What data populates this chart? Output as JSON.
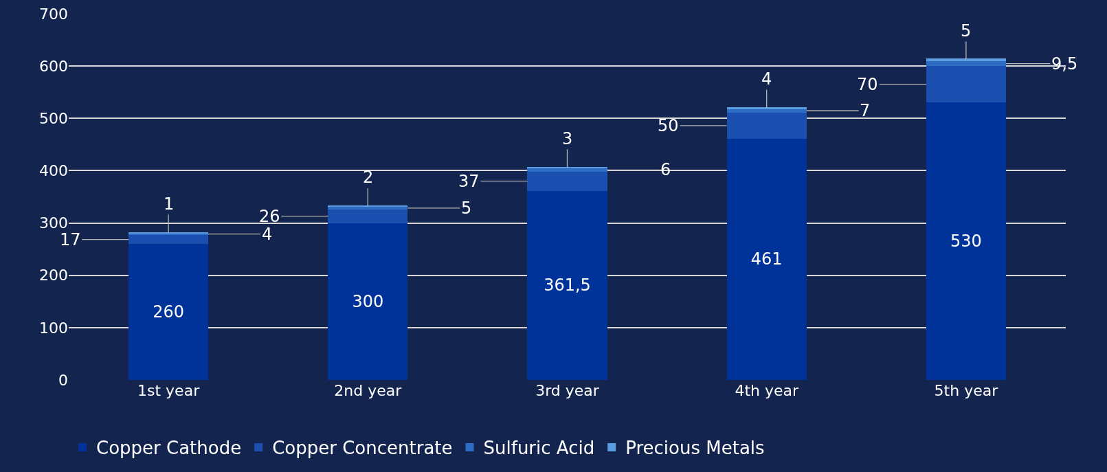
{
  "chart_data": {
    "type": "bar",
    "stacked": true,
    "categories": [
      "1st year",
      "2nd year",
      "3rd year",
      "4th year",
      "5th year"
    ],
    "series": [
      {
        "name": "Copper Cathode",
        "color": "#003399",
        "values": [
          260,
          300,
          361.5,
          461,
          530
        ],
        "value_labels": [
          "260",
          "300",
          "361,5",
          "461",
          "530"
        ]
      },
      {
        "name": "Copper Concentrate",
        "color": "#1a4faf",
        "values": [
          17,
          26,
          37,
          50,
          70
        ],
        "value_labels": [
          "17",
          "26",
          "37",
          "50",
          "70"
        ]
      },
      {
        "name": "Sulfuric Acid",
        "color": "#2e6cc4",
        "values": [
          4,
          5,
          6,
          7,
          9.5
        ],
        "value_labels": [
          "4",
          "5",
          "6",
          "7",
          "9,5"
        ]
      },
      {
        "name": "Precious Metals",
        "color": "#5b9be0",
        "values": [
          1,
          2,
          3,
          4,
          5
        ],
        "value_labels": [
          "1",
          "2",
          "3",
          "4",
          "5"
        ]
      }
    ],
    "ylim": [
      0,
      700
    ],
    "yticks": [
      0,
      100,
      200,
      300,
      400,
      500,
      600,
      700
    ],
    "grid": "y",
    "legend": "bottom"
  }
}
